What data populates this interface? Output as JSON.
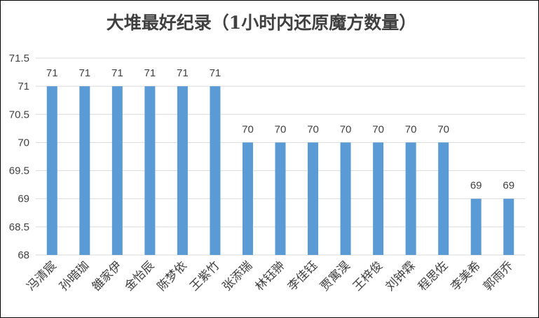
{
  "chart_data": {
    "type": "bar",
    "title": "大堆最好纪录（1小时内还原魔方数量）",
    "xlabel": "",
    "ylabel": "",
    "categories": [
      "冯清宸",
      "孙暗珈",
      "雒家伊",
      "金怡辰",
      "陈梦依",
      "王紫竹",
      "张添瑞",
      "林钰翀",
      "李佳钰",
      "贾寓淏",
      "王梓俊",
      "刘钟霖",
      "程思佐",
      "李美希",
      "郭雨乔"
    ],
    "values": [
      71,
      71,
      71,
      71,
      71,
      71,
      70,
      70,
      70,
      70,
      70,
      70,
      70,
      69,
      69
    ],
    "data_labels": [
      "71",
      "71",
      "71",
      "71",
      "71",
      "71",
      "70",
      "70",
      "70",
      "70",
      "70",
      "70",
      "70",
      "69",
      "69"
    ],
    "ylim": [
      68,
      71.5
    ],
    "yticks": [
      68,
      68.5,
      69,
      69.5,
      70,
      70.5,
      71,
      71.5
    ],
    "ytick_labels": [
      "68",
      "68.5",
      "69",
      "69.5",
      "70",
      "70.5",
      "71",
      "71.5"
    ],
    "grid": true,
    "legend": "none",
    "colors": {
      "bar": "#5B9BD5",
      "grid": "#D9D9D9",
      "text": "#404040",
      "title": "#404040",
      "frame": "#000000"
    }
  }
}
